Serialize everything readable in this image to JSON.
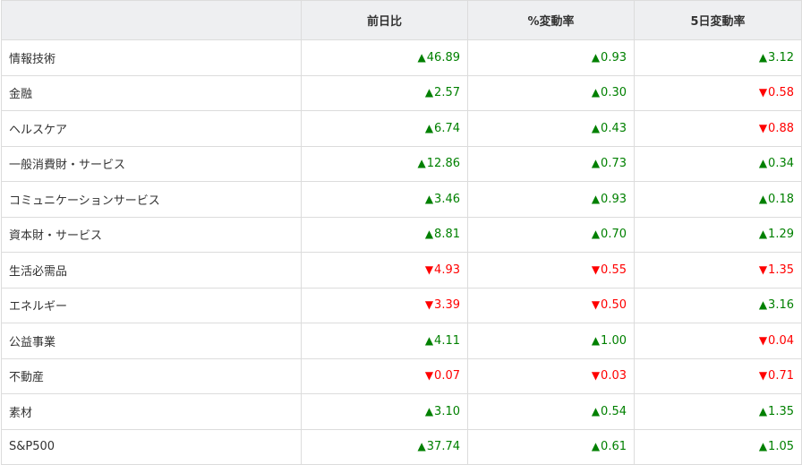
{
  "colors": {
    "up": "#008000",
    "down": "#ff0000",
    "header_bg": "#eeeff1"
  },
  "headers": [
    "",
    "前日比",
    "%変動率",
    "5日変動率"
  ],
  "rows": [
    {
      "name": "情報技術",
      "values": [
        {
          "dir": "up",
          "v": "46.89"
        },
        {
          "dir": "up",
          "v": "0.93"
        },
        {
          "dir": "up",
          "v": "3.12"
        }
      ]
    },
    {
      "name": "金融",
      "values": [
        {
          "dir": "up",
          "v": "2.57"
        },
        {
          "dir": "up",
          "v": "0.30"
        },
        {
          "dir": "down",
          "v": "0.58"
        }
      ]
    },
    {
      "name": "ヘルスケア",
      "values": [
        {
          "dir": "up",
          "v": "6.74"
        },
        {
          "dir": "up",
          "v": "0.43"
        },
        {
          "dir": "down",
          "v": "0.88"
        }
      ]
    },
    {
      "name": "一般消費財・サービス",
      "values": [
        {
          "dir": "up",
          "v": "12.86"
        },
        {
          "dir": "up",
          "v": "0.73"
        },
        {
          "dir": "up",
          "v": "0.34"
        }
      ]
    },
    {
      "name": "コミュニケーションサービス",
      "values": [
        {
          "dir": "up",
          "v": "3.46"
        },
        {
          "dir": "up",
          "v": "0.93"
        },
        {
          "dir": "up",
          "v": "0.18"
        }
      ]
    },
    {
      "name": "資本財・サービス",
      "values": [
        {
          "dir": "up",
          "v": "8.81"
        },
        {
          "dir": "up",
          "v": "0.70"
        },
        {
          "dir": "up",
          "v": "1.29"
        }
      ]
    },
    {
      "name": "生活必需品",
      "values": [
        {
          "dir": "down",
          "v": "4.93"
        },
        {
          "dir": "down",
          "v": "0.55"
        },
        {
          "dir": "down",
          "v": "1.35"
        }
      ]
    },
    {
      "name": "エネルギー",
      "values": [
        {
          "dir": "down",
          "v": "3.39"
        },
        {
          "dir": "down",
          "v": "0.50"
        },
        {
          "dir": "up",
          "v": "3.16"
        }
      ]
    },
    {
      "name": "公益事業",
      "values": [
        {
          "dir": "up",
          "v": "4.11"
        },
        {
          "dir": "up",
          "v": "1.00"
        },
        {
          "dir": "down",
          "v": "0.04"
        }
      ]
    },
    {
      "name": "不動産",
      "values": [
        {
          "dir": "down",
          "v": "0.07"
        },
        {
          "dir": "down",
          "v": "0.03"
        },
        {
          "dir": "down",
          "v": "0.71"
        }
      ]
    },
    {
      "name": "素材",
      "values": [
        {
          "dir": "up",
          "v": "3.10"
        },
        {
          "dir": "up",
          "v": "0.54"
        },
        {
          "dir": "up",
          "v": "1.35"
        }
      ]
    },
    {
      "name": "S&P500",
      "values": [
        {
          "dir": "up",
          "v": "37.74"
        },
        {
          "dir": "up",
          "v": "0.61"
        },
        {
          "dir": "up",
          "v": "1.05"
        }
      ]
    }
  ]
}
